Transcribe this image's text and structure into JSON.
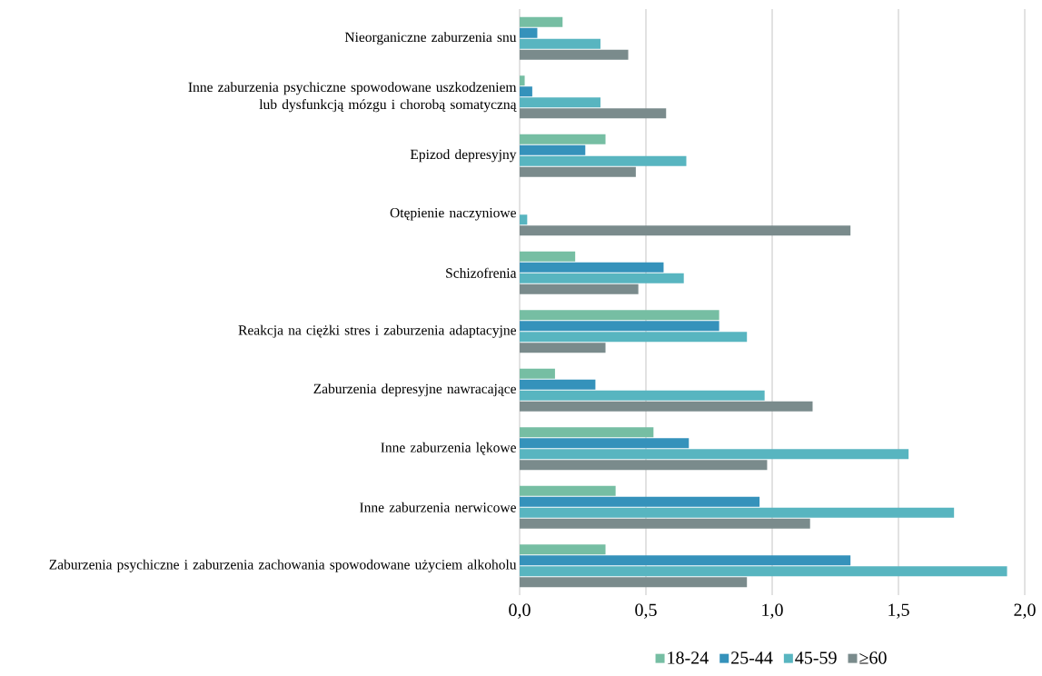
{
  "chart_data": {
    "type": "bar",
    "orientation": "horizontal",
    "categories": [
      "Nieorganiczne zaburzenia snu",
      "Inne zaburzenia psychiczne spowodowane uszkodzeniem lub dysfunkcją mózgu i chorobą somatyczną",
      "Epizod depresyjny",
      "Otępienie naczyniowe",
      "Schizofrenia",
      "Reakcja na ciężki stres i zaburzenia adaptacyjne",
      "Zaburzenia depresyjne nawracające",
      "Inne zaburzenia lękowe",
      "Inne zaburzenia nerwicowe",
      "Zaburzenia psychiczne i zaburzenia zachowania spowodowane użyciem alkoholu"
    ],
    "series": [
      {
        "name": "18-24",
        "color": "#76bea3",
        "values": [
          0.17,
          0.02,
          0.34,
          null,
          0.22,
          0.79,
          0.14,
          0.53,
          0.38,
          0.34
        ]
      },
      {
        "name": "25-44",
        "color": "#3592bb",
        "values": [
          0.07,
          0.05,
          0.26,
          null,
          0.57,
          0.79,
          0.3,
          0.67,
          0.95,
          1.31
        ]
      },
      {
        "name": "45-59",
        "color": "#58b5c0",
        "values": [
          0.32,
          0.32,
          0.66,
          0.03,
          0.65,
          0.9,
          0.97,
          1.54,
          1.72,
          1.93
        ]
      },
      {
        "name": "≥60",
        "color": "#7a8b8c",
        "values": [
          0.43,
          0.58,
          0.46,
          1.31,
          0.47,
          0.34,
          1.16,
          0.98,
          1.15,
          0.9
        ]
      }
    ],
    "xlim": [
      0,
      2
    ],
    "xticks": [
      {
        "value": 0,
        "label": "0,0"
      },
      {
        "value": 0.5,
        "label": "0,5"
      },
      {
        "value": 1,
        "label": "1,0"
      },
      {
        "value": 1.5,
        "label": "1,5"
      },
      {
        "value": 2,
        "label": "2,0"
      }
    ],
    "grid": "x",
    "legend": "bottom"
  }
}
